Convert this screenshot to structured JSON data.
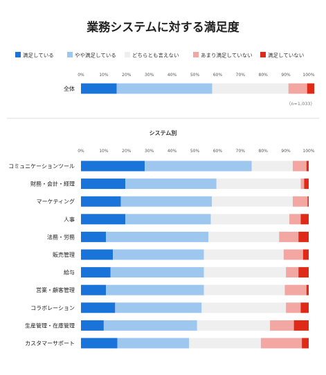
{
  "chart_data": [
    {
      "type": "bar",
      "orientation": "horizontal",
      "stacked": true,
      "title": "業務システムに対する満足度",
      "series": [
        {
          "name": "満足している",
          "color": "#1a73d9"
        },
        {
          "name": "やや満足している",
          "color": "#9ec7f0"
        },
        {
          "name": "どちらとも言えない",
          "color": "#efefef"
        },
        {
          "name": "あまり満足していない",
          "color": "#f2a7a2"
        },
        {
          "name": "満足していない",
          "color": "#de2a16"
        }
      ],
      "xlim": [
        0,
        100
      ],
      "ticks": [
        "0%",
        "10%",
        "20%",
        "30%",
        "40%",
        "50%",
        "60%",
        "70%",
        "80%",
        "90%",
        "100%"
      ],
      "categories": [
        "全体"
      ],
      "values": [
        [
          15.7,
          41.9,
          33.5,
          8.2,
          3.2
        ]
      ],
      "note": "（n=1,033）",
      "legend": "top"
    },
    {
      "type": "bar",
      "orientation": "horizontal",
      "stacked": true,
      "subtitle": "システム別",
      "xlim": [
        0,
        100
      ],
      "ticks": [
        "0%",
        "10%",
        "20%",
        "30%",
        "40%",
        "50%",
        "60%",
        "70%",
        "80%",
        "90%",
        "100%"
      ],
      "categories": [
        "コミュニケーションツール",
        "財務・会計・経理",
        "マーケティング",
        "人事",
        "法務・労務",
        "販売管理",
        "給与",
        "営業・顧客管理",
        "コラボレーション",
        "生産管理・在庫管理",
        "カスタマーサポート"
      ],
      "values": [
        [
          28.0,
          47.0,
          18.0,
          6.0,
          1.0
        ],
        [
          19.5,
          40.0,
          37.0,
          1.5,
          2.0
        ],
        [
          17.5,
          40.0,
          35.5,
          6.5,
          0.5
        ],
        [
          19.5,
          37.5,
          34.5,
          5.0,
          3.5
        ],
        [
          11.0,
          45.0,
          31.0,
          8.5,
          4.5
        ],
        [
          14.0,
          40.0,
          35.0,
          8.5,
          2.5
        ],
        [
          13.0,
          41.0,
          36.0,
          5.5,
          4.5
        ],
        [
          11.0,
          43.0,
          35.5,
          9.5,
          1.0
        ],
        [
          15.0,
          38.0,
          37.0,
          6.5,
          3.5
        ],
        [
          10.0,
          41.0,
          32.0,
          10.5,
          6.5
        ],
        [
          16.0,
          31.5,
          31.5,
          18.0,
          3.0
        ]
      ]
    }
  ]
}
